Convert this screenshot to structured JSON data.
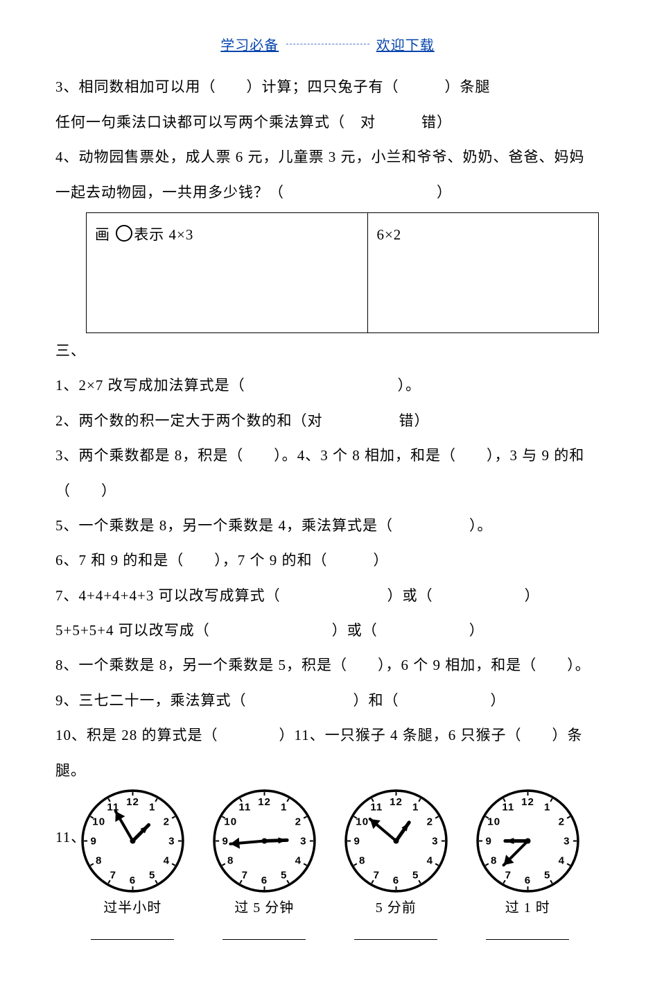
{
  "header": {
    "left": "学习必备",
    "right": "欢迎下载"
  },
  "q3a": "3、相同数相加可以用（　　）计算；四只兔子有（　　　）条腿",
  "q3b": "任何一句乘法口诀都可以写两个乘法算式（ 对　　　错）",
  "q4a": "4、动物园售票处，成人票 6 元，儿童票 3 元，小兰和爷爷、奶奶、爸爸、妈妈",
  "q4b": "一起去动物园，一共用多少钱？（　　　　　　　　　　）",
  "box": {
    "left_pre": "画 ",
    "left_post": "表示 4×3",
    "right": "6×2"
  },
  "sec3": "三、",
  "p1": "1、2×7 改写成加法算式是（　　　　　　　　　　）。",
  "p2": "2、两个数的积一定大于两个数的和（对　　　　　错）",
  "p3": "3、两个乘数都是 8，积是（　　）。4、3 个 8 相加，和是（　　），3 与 9 的和（　　）",
  "p5": "5、一个乘数是 8，另一个乘数是 4，乘法算式是（　　　　　）。",
  "p6": "6、7 和 9 的和是（　　），7 个 9 的和（　　　）",
  "p7": "7、4+4+4+4+3 可以改写成算式（　　　　　　　）或（　　　　　　）",
  "p7b": "5+5+5+4 可以改写成（　　　　　　　　）或（　　　　　　）",
  "p8": "8、一个乘数是 8，另一个乘数是 5，积是（　　），6 个 9 相加，和是（　　）。",
  "p9": "9、三七二十一，乘法算式（　　　　　　　）和（　　　　　　）",
  "p10": "10、积是 28 的算式是（　　　　）11、一只猴子 4 条腿，6 只猴子（　　）条腿。",
  "p11label": "11、",
  "clocks": {
    "face": {
      "stroke": "#000000",
      "stroke_width": 3.5,
      "radius": 72,
      "num_fontsize": 15,
      "num_weight": "bold",
      "hand_color": "#000000",
      "tick_len": 5
    },
    "items": [
      {
        "caption": "过半小时",
        "hour_angle": 45,
        "minute_angle": 330
      },
      {
        "caption": "过 5 分钟",
        "hour_angle": 88,
        "minute_angle": 265
      },
      {
        "caption": "5 分前",
        "hour_angle": 35,
        "minute_angle": 310
      },
      {
        "caption": "过 1 时",
        "hour_angle": 270,
        "minute_angle": 225
      }
    ]
  }
}
